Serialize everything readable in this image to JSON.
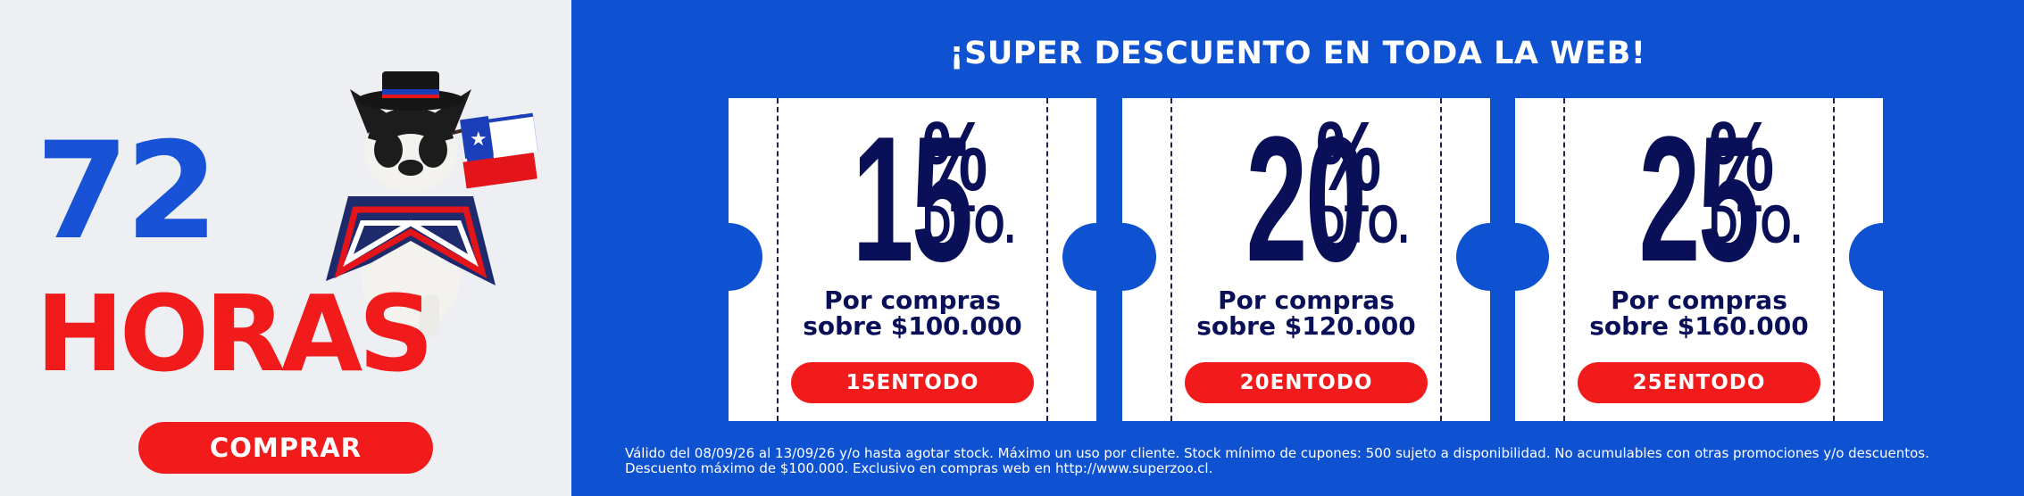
{
  "promo": {
    "number": "72",
    "word": "HORAS",
    "cta_label": "COMPRAR"
  },
  "headline": "¡SUPER DESCUENTO EN TODA LA WEB!",
  "coupons": [
    {
      "percent": "15",
      "symbol": "%",
      "unit": "DTO.",
      "line1": "Por compras",
      "line2": "sobre $100.000",
      "code": "15ENTODO"
    },
    {
      "percent": "20",
      "symbol": "%",
      "unit": "DTO.",
      "line1": "Por compras",
      "line2": "sobre $120.000",
      "code": "20ENTODO"
    },
    {
      "percent": "25",
      "symbol": "%",
      "unit": "DTO.",
      "line1": "Por compras",
      "line2": "sobre $160.000",
      "code": "25ENTODO"
    }
  ],
  "legal": {
    "line1": "Válido del 08/09/26 al 13/09/26 y/o hasta agotar stock. Máximo un uso por cliente. Stock mínimo de cupones: 500 sujeto a disponibilidad. No acumulables con otras promociones y/o descuentos.",
    "line2": "Descuento máximo de $100.000. Exclusivo en compras web en http://www.superzoo.cl."
  },
  "colors": {
    "blue": "#0f52d1",
    "navy": "#0a1058",
    "red": "#f21b1b",
    "light_bg": "#eeeff3"
  }
}
